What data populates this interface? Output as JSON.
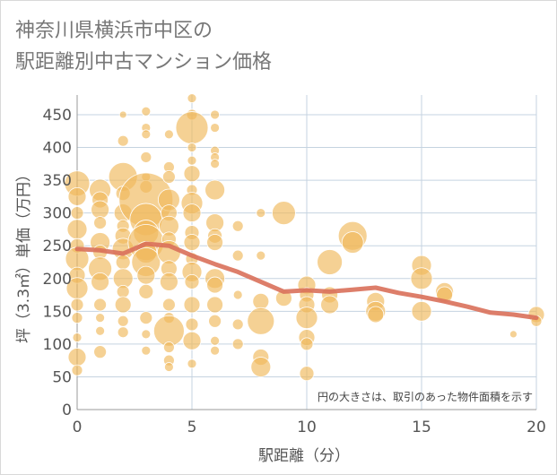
{
  "title_lines": [
    "神奈川県横浜市中区の",
    "駅距離別中古マンション価格"
  ],
  "note": "円の大きさは、取引のあった物件面積を示す",
  "colors": {
    "bubble": "#f0b85a",
    "line": "#d9705a",
    "grid": "#c5d3e0",
    "axis": "#999999"
  },
  "chart_data": {
    "type": "scatter",
    "title": "神奈川県横浜市中区の駅距離別中古マンション価格",
    "xlabel": "駅距離（分）",
    "ylabel": "坪（3.3㎡）単価（万円）",
    "xlim": [
      0,
      20
    ],
    "ylim": [
      0,
      480
    ],
    "xticks": [
      0,
      5,
      10,
      15,
      20
    ],
    "yticks": [
      0,
      50,
      100,
      150,
      200,
      250,
      300,
      350,
      400,
      450
    ],
    "grid": true,
    "annotation": "円の大きさは、取引のあった物件面積を示す",
    "points": [
      {
        "x": 0,
        "y": 345,
        "size": 14
      },
      {
        "x": 0,
        "y": 325,
        "size": 10
      },
      {
        "x": 0,
        "y": 300,
        "size": 7
      },
      {
        "x": 0,
        "y": 275,
        "size": 11
      },
      {
        "x": 0,
        "y": 250,
        "size": 8
      },
      {
        "x": 0,
        "y": 230,
        "size": 13
      },
      {
        "x": 0,
        "y": 205,
        "size": 9
      },
      {
        "x": 0,
        "y": 185,
        "size": 12
      },
      {
        "x": 0,
        "y": 160,
        "size": 7
      },
      {
        "x": 0,
        "y": 140,
        "size": 6
      },
      {
        "x": 0,
        "y": 110,
        "size": 5
      },
      {
        "x": 0,
        "y": 80,
        "size": 10
      },
      {
        "x": 0,
        "y": 60,
        "size": 6
      },
      {
        "x": 1,
        "y": 335,
        "size": 12
      },
      {
        "x": 1,
        "y": 320,
        "size": 9
      },
      {
        "x": 1,
        "y": 305,
        "size": 10
      },
      {
        "x": 1,
        "y": 285,
        "size": 7
      },
      {
        "x": 1,
        "y": 255,
        "size": 11
      },
      {
        "x": 1,
        "y": 240,
        "size": 8
      },
      {
        "x": 1,
        "y": 215,
        "size": 13
      },
      {
        "x": 1,
        "y": 195,
        "size": 10
      },
      {
        "x": 1,
        "y": 160,
        "size": 7
      },
      {
        "x": 1,
        "y": 140,
        "size": 5
      },
      {
        "x": 1,
        "y": 120,
        "size": 5
      },
      {
        "x": 1,
        "y": 88,
        "size": 7
      },
      {
        "x": 2,
        "y": 450,
        "size": 4
      },
      {
        "x": 2,
        "y": 410,
        "size": 6
      },
      {
        "x": 2,
        "y": 355,
        "size": 16
      },
      {
        "x": 2,
        "y": 330,
        "size": 8
      },
      {
        "x": 2,
        "y": 300,
        "size": 10
      },
      {
        "x": 2,
        "y": 280,
        "size": 7
      },
      {
        "x": 2,
        "y": 265,
        "size": 9
      },
      {
        "x": 2,
        "y": 245,
        "size": 12
      },
      {
        "x": 2,
        "y": 225,
        "size": 8
      },
      {
        "x": 2,
        "y": 200,
        "size": 11
      },
      {
        "x": 2,
        "y": 180,
        "size": 7
      },
      {
        "x": 2,
        "y": 160,
        "size": 9
      },
      {
        "x": 2,
        "y": 135,
        "size": 6
      },
      {
        "x": 2,
        "y": 118,
        "size": 6
      },
      {
        "x": 3,
        "y": 455,
        "size": 5
      },
      {
        "x": 3,
        "y": 430,
        "size": 5
      },
      {
        "x": 3,
        "y": 420,
        "size": 5
      },
      {
        "x": 3,
        "y": 385,
        "size": 6
      },
      {
        "x": 3,
        "y": 355,
        "size": 5
      },
      {
        "x": 3,
        "y": 340,
        "size": 7
      },
      {
        "x": 3,
        "y": 320,
        "size": 30
      },
      {
        "x": 3,
        "y": 290,
        "size": 18
      },
      {
        "x": 3,
        "y": 270,
        "size": 14
      },
      {
        "x": 3,
        "y": 255,
        "size": 20
      },
      {
        "x": 3,
        "y": 240,
        "size": 12
      },
      {
        "x": 3,
        "y": 225,
        "size": 16
      },
      {
        "x": 3,
        "y": 205,
        "size": 10
      },
      {
        "x": 3,
        "y": 180,
        "size": 8
      },
      {
        "x": 3,
        "y": 140,
        "size": 7
      },
      {
        "x": 3,
        "y": 115,
        "size": 5
      },
      {
        "x": 3,
        "y": 90,
        "size": 5
      },
      {
        "x": 4,
        "y": 420,
        "size": 5
      },
      {
        "x": 4,
        "y": 370,
        "size": 6
      },
      {
        "x": 4,
        "y": 355,
        "size": 7
      },
      {
        "x": 4,
        "y": 320,
        "size": 12
      },
      {
        "x": 4,
        "y": 300,
        "size": 9
      },
      {
        "x": 4,
        "y": 280,
        "size": 11
      },
      {
        "x": 4,
        "y": 260,
        "size": 8
      },
      {
        "x": 4,
        "y": 240,
        "size": 13
      },
      {
        "x": 4,
        "y": 215,
        "size": 9
      },
      {
        "x": 4,
        "y": 195,
        "size": 10
      },
      {
        "x": 4,
        "y": 160,
        "size": 7
      },
      {
        "x": 4,
        "y": 140,
        "size": 6
      },
      {
        "x": 4,
        "y": 120,
        "size": 17
      },
      {
        "x": 4,
        "y": 95,
        "size": 6
      },
      {
        "x": 4,
        "y": 75,
        "size": 6
      },
      {
        "x": 4,
        "y": 65,
        "size": 5
      },
      {
        "x": 5,
        "y": 475,
        "size": 5
      },
      {
        "x": 5,
        "y": 450,
        "size": 6
      },
      {
        "x": 5,
        "y": 430,
        "size": 18
      },
      {
        "x": 5,
        "y": 400,
        "size": 5
      },
      {
        "x": 5,
        "y": 380,
        "size": 5
      },
      {
        "x": 5,
        "y": 360,
        "size": 9
      },
      {
        "x": 5,
        "y": 335,
        "size": 6
      },
      {
        "x": 5,
        "y": 315,
        "size": 12
      },
      {
        "x": 5,
        "y": 300,
        "size": 10
      },
      {
        "x": 5,
        "y": 270,
        "size": 8
      },
      {
        "x": 5,
        "y": 255,
        "size": 9
      },
      {
        "x": 5,
        "y": 230,
        "size": 7
      },
      {
        "x": 5,
        "y": 210,
        "size": 11
      },
      {
        "x": 5,
        "y": 195,
        "size": 8
      },
      {
        "x": 5,
        "y": 160,
        "size": 9
      },
      {
        "x": 5,
        "y": 130,
        "size": 7
      },
      {
        "x": 5,
        "y": 105,
        "size": 10
      },
      {
        "x": 5,
        "y": 70,
        "size": 5
      },
      {
        "x": 6,
        "y": 450,
        "size": 5
      },
      {
        "x": 6,
        "y": 430,
        "size": 5
      },
      {
        "x": 6,
        "y": 395,
        "size": 5
      },
      {
        "x": 6,
        "y": 385,
        "size": 5
      },
      {
        "x": 6,
        "y": 375,
        "size": 5
      },
      {
        "x": 6,
        "y": 335,
        "size": 11
      },
      {
        "x": 6,
        "y": 285,
        "size": 10
      },
      {
        "x": 6,
        "y": 265,
        "size": 8
      },
      {
        "x": 6,
        "y": 255,
        "size": 9
      },
      {
        "x": 6,
        "y": 200,
        "size": 11
      },
      {
        "x": 6,
        "y": 190,
        "size": 9
      },
      {
        "x": 6,
        "y": 160,
        "size": 9
      },
      {
        "x": 6,
        "y": 135,
        "size": 7
      },
      {
        "x": 6,
        "y": 105,
        "size": 5
      },
      {
        "x": 6,
        "y": 90,
        "size": 5
      },
      {
        "x": 7,
        "y": 280,
        "size": 6
      },
      {
        "x": 7,
        "y": 235,
        "size": 6
      },
      {
        "x": 7,
        "y": 175,
        "size": 5
      },
      {
        "x": 7,
        "y": 130,
        "size": 6
      },
      {
        "x": 7,
        "y": 100,
        "size": 6
      },
      {
        "x": 8,
        "y": 300,
        "size": 5
      },
      {
        "x": 8,
        "y": 235,
        "size": 5
      },
      {
        "x": 8,
        "y": 165,
        "size": 9
      },
      {
        "x": 8,
        "y": 135,
        "size": 15
      },
      {
        "x": 8,
        "y": 80,
        "size": 9
      },
      {
        "x": 8,
        "y": 65,
        "size": 11
      },
      {
        "x": 9,
        "y": 300,
        "size": 13
      },
      {
        "x": 9,
        "y": 170,
        "size": 9
      },
      {
        "x": 10,
        "y": 190,
        "size": 10
      },
      {
        "x": 10,
        "y": 175,
        "size": 8
      },
      {
        "x": 10,
        "y": 160,
        "size": 9
      },
      {
        "x": 10,
        "y": 140,
        "size": 12
      },
      {
        "x": 10,
        "y": 110,
        "size": 9
      },
      {
        "x": 10,
        "y": 100,
        "size": 7
      },
      {
        "x": 10,
        "y": 55,
        "size": 8
      },
      {
        "x": 11,
        "y": 225,
        "size": 14
      },
      {
        "x": 11,
        "y": 175,
        "size": 9
      },
      {
        "x": 11,
        "y": 160,
        "size": 10
      },
      {
        "x": 12,
        "y": 265,
        "size": 16
      },
      {
        "x": 12,
        "y": 255,
        "size": 12
      },
      {
        "x": 13,
        "y": 165,
        "size": 10
      },
      {
        "x": 13,
        "y": 150,
        "size": 11
      },
      {
        "x": 13,
        "y": 145,
        "size": 9
      },
      {
        "x": 15,
        "y": 220,
        "size": 11
      },
      {
        "x": 15,
        "y": 200,
        "size": 12
      },
      {
        "x": 15,
        "y": 150,
        "size": 11
      },
      {
        "x": 16,
        "y": 180,
        "size": 10
      },
      {
        "x": 16,
        "y": 175,
        "size": 9
      },
      {
        "x": 19,
        "y": 115,
        "size": 4
      },
      {
        "x": 20,
        "y": 145,
        "size": 9
      },
      {
        "x": 20,
        "y": 135,
        "size": 6
      }
    ],
    "series": [
      {
        "type": "line",
        "x": [
          0,
          1,
          2,
          3,
          4,
          5,
          6,
          7,
          8,
          9,
          10,
          11,
          12,
          13,
          14,
          15,
          16,
          17,
          18,
          19,
          20
        ],
        "values": [
          245,
          243,
          238,
          253,
          250,
          235,
          222,
          210,
          195,
          180,
          182,
          180,
          183,
          186,
          178,
          172,
          165,
          157,
          148,
          145,
          140
        ]
      }
    ]
  }
}
